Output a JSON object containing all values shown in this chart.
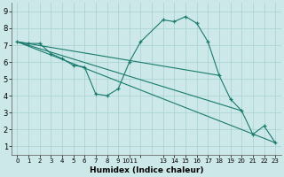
{
  "bg_color": "#cce8e8",
  "grid_color": "#add4d4",
  "line_color": "#1a7a6e",
  "xlabel": "Humidex (Indice chaleur)",
  "ylim": [
    0.5,
    9.5
  ],
  "xlim": [
    -0.5,
    23.5
  ],
  "yticks": [
    1,
    2,
    3,
    4,
    5,
    6,
    7,
    8,
    9
  ],
  "curve_x": [
    0,
    1,
    2,
    3,
    4,
    5,
    6,
    7,
    8,
    9,
    10,
    11,
    13,
    14,
    15,
    16,
    17,
    18,
    19,
    20,
    21,
    22,
    23
  ],
  "curve_y": [
    7.2,
    7.1,
    7.1,
    6.5,
    6.2,
    5.8,
    5.7,
    4.1,
    4.0,
    4.4,
    6.0,
    7.2,
    8.5,
    8.4,
    8.7,
    8.3,
    7.2,
    5.2,
    3.8,
    3.1,
    1.7,
    2.2,
    1.2
  ],
  "line1_x": [
    0,
    23
  ],
  "line1_y": [
    7.2,
    1.2
  ],
  "line2_x": [
    0,
    18
  ],
  "line2_y": [
    7.2,
    5.2
  ],
  "line3_x": [
    0,
    20
  ],
  "line3_y": [
    7.2,
    3.1
  ],
  "xtick_positions": [
    0,
    1,
    2,
    3,
    4,
    5,
    6,
    7,
    8,
    9,
    10,
    11,
    13,
    14,
    15,
    16,
    17,
    18,
    19,
    20,
    21,
    22,
    23
  ],
  "xtick_labels": [
    "0",
    "1",
    "2",
    "3",
    "4",
    "5",
    "6",
    "7",
    "8",
    "9",
    "1011",
    "",
    "13",
    "14",
    "15",
    "16",
    "17",
    "18",
    "19",
    "20",
    "21",
    "22",
    "23"
  ]
}
